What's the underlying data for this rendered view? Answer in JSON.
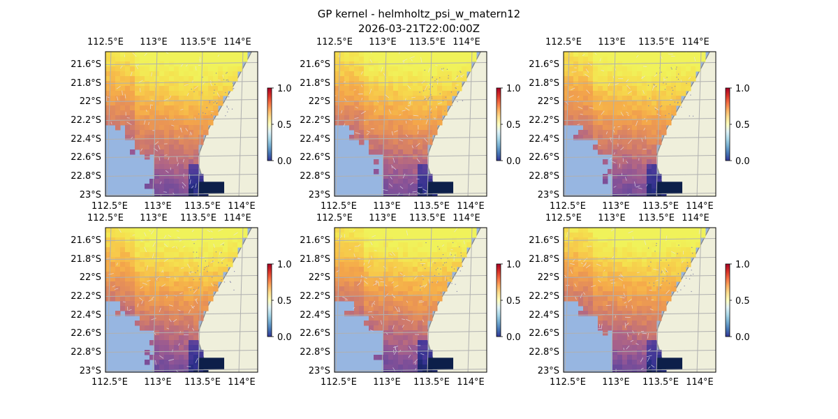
{
  "title_line1": "GP kernel - helmholtz_psi_w_matern12",
  "title_line2": "2026-03-21T22:00:00Z",
  "colors": {
    "ocean": "#97b6e1",
    "land": "#efefdb",
    "grid": "#b0b0b0",
    "coast": "#808080",
    "colormap": [
      "#313695",
      "#4575b4",
      "#74add1",
      "#abd9e9",
      "#e0f3f8",
      "#ffffbf",
      "#fee090",
      "#fdae61",
      "#f46d43",
      "#d73027",
      "#a50026"
    ],
    "field_palette": [
      "#0d1f4a",
      "#2b2f8a",
      "#4a3a9a",
      "#6e4a9a",
      "#8f5596",
      "#b06585",
      "#cf7a6c",
      "#e68f58",
      "#f4a64a",
      "#f7c34a",
      "#f5e04e",
      "#f0f25a"
    ]
  },
  "chart_data": [
    {
      "type": "heatmap",
      "panel": 1,
      "xlabel": "",
      "ylabel": "",
      "x_ticks": [
        "112.5°E",
        "113°E",
        "113.5°E",
        "114°E"
      ],
      "y_ticks": [
        "21.6°S",
        "21.8°S",
        "22°S",
        "22.2°S",
        "22.4°S",
        "22.6°S",
        "22.8°S",
        "23°S"
      ],
      "xlim": [
        112.47,
        114.18
      ],
      "ylim": [
        -23.0,
        -21.45
      ],
      "colorbar": {
        "ticks": [
          "0.0",
          "0.5",
          "1.0"
        ],
        "range": [
          0,
          1
        ]
      }
    },
    {
      "type": "heatmap",
      "panel": 2,
      "xlabel": "",
      "ylabel": "",
      "x_ticks": [
        "112.5°E",
        "113°E",
        "113.5°E",
        "114°E"
      ],
      "y_ticks": [
        "21.6°S",
        "21.8°S",
        "22°S",
        "22.2°S",
        "22.4°S",
        "22.6°S",
        "22.8°S",
        "23°S"
      ],
      "xlim": [
        112.47,
        114.18
      ],
      "ylim": [
        -23.0,
        -21.45
      ],
      "colorbar": {
        "ticks": [
          "0.0",
          "0.5",
          "1.0"
        ],
        "range": [
          0,
          1
        ]
      }
    },
    {
      "type": "heatmap",
      "panel": 3,
      "xlabel": "",
      "ylabel": "",
      "x_ticks": [
        "112.5°E",
        "113°E",
        "113.5°E",
        "114°E"
      ],
      "y_ticks": [
        "21.6°S",
        "21.8°S",
        "22°S",
        "22.2°S",
        "22.4°S",
        "22.6°S",
        "22.8°S",
        "23°S"
      ],
      "xlim": [
        112.47,
        114.18
      ],
      "ylim": [
        -23.0,
        -21.45
      ],
      "colorbar": {
        "ticks": [
          "0.0",
          "0.5",
          "1.0"
        ],
        "range": [
          0,
          1
        ]
      }
    },
    {
      "type": "heatmap",
      "panel": 4,
      "xlabel": "",
      "ylabel": "",
      "x_ticks": [
        "112.5°E",
        "113°E",
        "113.5°E",
        "114°E"
      ],
      "y_ticks": [
        "21.6°S",
        "21.8°S",
        "22°S",
        "22.2°S",
        "22.4°S",
        "22.6°S",
        "22.8°S",
        "23°S"
      ],
      "xlim": [
        112.47,
        114.18
      ],
      "ylim": [
        -23.0,
        -21.45
      ],
      "colorbar": {
        "ticks": [
          "0.0",
          "0.5",
          "1.0"
        ],
        "range": [
          0,
          1
        ]
      }
    },
    {
      "type": "heatmap",
      "panel": 5,
      "xlabel": "",
      "ylabel": "",
      "x_ticks": [
        "112.5°E",
        "113°E",
        "113.5°E",
        "114°E"
      ],
      "y_ticks": [
        "21.6°S",
        "21.8°S",
        "22°S",
        "22.2°S",
        "22.4°S",
        "22.6°S",
        "22.8°S",
        "23°S"
      ],
      "xlim": [
        112.47,
        114.18
      ],
      "ylim": [
        -23.0,
        -21.45
      ],
      "colorbar": {
        "ticks": [
          "0.0",
          "0.5",
          "1.0"
        ],
        "range": [
          0,
          1
        ]
      }
    },
    {
      "type": "heatmap",
      "panel": 6,
      "xlabel": "",
      "ylabel": "",
      "x_ticks": [
        "112.5°E",
        "113°E",
        "113.5°E",
        "114°E"
      ],
      "y_ticks": [
        "21.6°S",
        "21.8°S",
        "22°S",
        "22.2°S",
        "22.4°S",
        "22.6°S",
        "22.8°S",
        "23°S"
      ],
      "xlim": [
        112.47,
        114.18
      ],
      "ylim": [
        -23.0,
        -21.45
      ],
      "colorbar": {
        "ticks": [
          "0.0",
          "0.5",
          "1.0"
        ],
        "range": [
          0,
          1
        ]
      }
    }
  ]
}
